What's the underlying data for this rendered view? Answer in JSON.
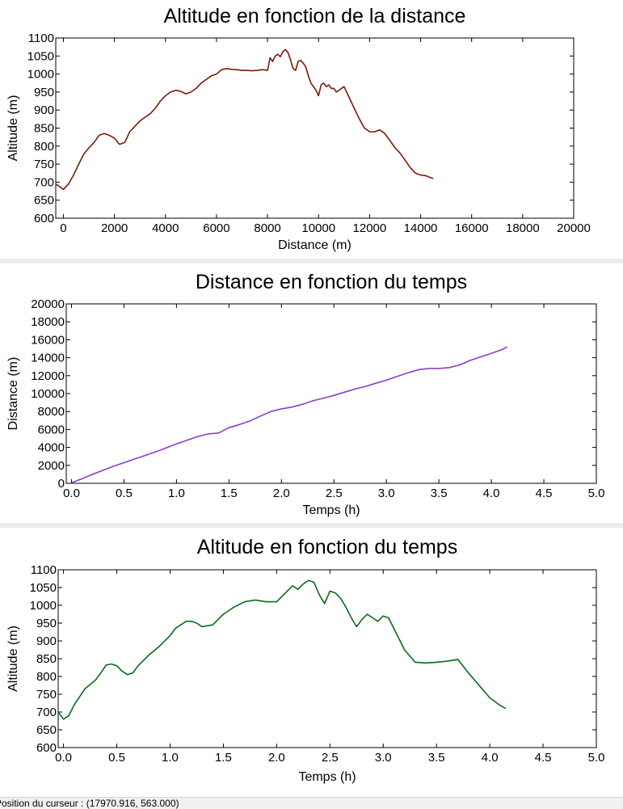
{
  "charts": [
    {
      "type": "line",
      "title": "Altitude en fonction de la distance",
      "xlabel": "Distance (m)",
      "ylabel": "Altitude (m)",
      "xlim": [
        -300,
        20000
      ],
      "ylim": [
        600,
        1100
      ],
      "xticks": [
        0,
        2000,
        4000,
        6000,
        8000,
        10000,
        12000,
        14000,
        16000,
        18000,
        20000
      ],
      "xtick_labels": [
        "0",
        "2000",
        "4000",
        "6000",
        "8000",
        "10000",
        "12000",
        "14000",
        "16000",
        "18000",
        "20000"
      ],
      "yticks": [
        600,
        650,
        700,
        750,
        800,
        850,
        900,
        950,
        1000,
        1050,
        1100
      ],
      "ytick_labels": [
        "600",
        "650",
        "700",
        "750",
        "800",
        "850",
        "900",
        "950",
        "1000",
        "1050",
        "1100"
      ],
      "series": [
        {
          "color": "#7a1a0a",
          "x": [
            -300,
            0,
            200,
            400,
            600,
            800,
            1000,
            1200,
            1400,
            1600,
            1800,
            2000,
            2200,
            2400,
            2600,
            2800,
            3000,
            3200,
            3400,
            3600,
            3800,
            4000,
            4200,
            4400,
            4600,
            4800,
            5000,
            5200,
            5400,
            5600,
            5800,
            6000,
            6200,
            6400,
            6600,
            6800,
            7000,
            7200,
            7400,
            7600,
            7800,
            8000,
            8100,
            8200,
            8300,
            8400,
            8500,
            8600,
            8700,
            8800,
            8900,
            9000,
            9100,
            9200,
            9300,
            9400,
            9500,
            9600,
            9700,
            9800,
            9900,
            10000,
            10100,
            10200,
            10300,
            10400,
            10500,
            10600,
            10700,
            10800,
            11000,
            11200,
            11400,
            11600,
            11800,
            12000,
            12200,
            12400,
            12600,
            12800,
            13000,
            13200,
            13400,
            13600,
            13800,
            14000,
            14200,
            14400,
            14500
          ],
          "y": [
            695,
            680,
            695,
            720,
            750,
            778,
            795,
            810,
            830,
            835,
            830,
            822,
            805,
            810,
            840,
            855,
            870,
            880,
            890,
            905,
            925,
            940,
            950,
            955,
            952,
            945,
            950,
            960,
            975,
            985,
            995,
            1000,
            1012,
            1015,
            1013,
            1012,
            1010,
            1010,
            1009,
            1010,
            1012,
            1010,
            1045,
            1035,
            1050,
            1055,
            1048,
            1062,
            1068,
            1060,
            1040,
            1015,
            1010,
            1035,
            1038,
            1030,
            1020,
            995,
            975,
            965,
            955,
            940,
            970,
            975,
            965,
            970,
            960,
            960,
            950,
            955,
            965,
            935,
            905,
            875,
            850,
            840,
            840,
            845,
            835,
            815,
            795,
            780,
            760,
            740,
            725,
            720,
            718,
            712,
            710
          ]
        }
      ]
    },
    {
      "type": "line",
      "title": "Distance en fonction du temps",
      "xlabel": "Temps (h)",
      "ylabel": "Distance (m)",
      "xlim": [
        -0.05,
        5
      ],
      "ylim": [
        0,
        20000
      ],
      "xticks": [
        0,
        0.5,
        1,
        1.5,
        2,
        2.5,
        3,
        3.5,
        4,
        4.5,
        5
      ],
      "xtick_labels": [
        "0.0",
        "0.5",
        "1.0",
        "1.5",
        "2.0",
        "2.5",
        "3.0",
        "3.5",
        "4.0",
        "4.5",
        "5.0"
      ],
      "yticks": [
        0,
        2000,
        4000,
        6000,
        8000,
        10000,
        12000,
        14000,
        16000,
        18000,
        20000
      ],
      "ytick_labels": [
        "0",
        "2000",
        "4000",
        "6000",
        "8000",
        "10000",
        "12000",
        "14000",
        "16000",
        "18000",
        "20000"
      ],
      "series": [
        {
          "color": "#8a3ec8",
          "x": [
            0,
            0.1,
            0.2,
            0.3,
            0.4,
            0.5,
            0.6,
            0.7,
            0.8,
            0.9,
            1.0,
            1.1,
            1.2,
            1.3,
            1.4,
            1.5,
            1.6,
            1.7,
            1.8,
            1.9,
            2.0,
            2.1,
            2.2,
            2.3,
            2.4,
            2.5,
            2.6,
            2.7,
            2.8,
            2.9,
            3.0,
            3.1,
            3.2,
            3.3,
            3.4,
            3.5,
            3.6,
            3.7,
            3.8,
            3.9,
            4.0,
            4.1,
            4.15
          ],
          "y": [
            50,
            500,
            1000,
            1450,
            1900,
            2300,
            2700,
            3100,
            3500,
            3950,
            4400,
            4800,
            5200,
            5500,
            5600,
            6200,
            6550,
            6950,
            7500,
            8000,
            8300,
            8500,
            8800,
            9200,
            9500,
            9800,
            10150,
            10500,
            10800,
            11150,
            11500,
            11900,
            12300,
            12650,
            12800,
            12800,
            12900,
            13200,
            13700,
            14100,
            14500,
            14900,
            15200
          ]
        }
      ]
    },
    {
      "type": "line",
      "title": "Altitude en fonction du temps",
      "xlabel": "Temps (h)",
      "ylabel": "Altitude (m)",
      "xlim": [
        -0.05,
        5
      ],
      "ylim": [
        600,
        1100
      ],
      "xticks": [
        0,
        0.5,
        1,
        1.5,
        2,
        2.5,
        3,
        3.5,
        4,
        4.5,
        5
      ],
      "xtick_labels": [
        "0.0",
        "0.5",
        "1.0",
        "1.5",
        "2.0",
        "2.5",
        "3.0",
        "3.5",
        "4.0",
        "4.5",
        "5.0"
      ],
      "yticks": [
        600,
        650,
        700,
        750,
        800,
        850,
        900,
        950,
        1000,
        1050,
        1100
      ],
      "ytick_labels": [
        "600",
        "650",
        "700",
        "750",
        "800",
        "850",
        "900",
        "950",
        "1000",
        "1050",
        "1100"
      ],
      "series": [
        {
          "color": "#0a6a1a",
          "x": [
            -0.05,
            0.0,
            0.05,
            0.1,
            0.2,
            0.3,
            0.35,
            0.4,
            0.45,
            0.5,
            0.55,
            0.6,
            0.65,
            0.7,
            0.75,
            0.8,
            0.9,
            1.0,
            1.05,
            1.1,
            1.15,
            1.2,
            1.25,
            1.3,
            1.4,
            1.5,
            1.6,
            1.7,
            1.8,
            1.9,
            2.0,
            2.1,
            2.15,
            2.2,
            2.25,
            2.3,
            2.35,
            2.4,
            2.45,
            2.5,
            2.55,
            2.6,
            2.65,
            2.7,
            2.75,
            2.8,
            2.85,
            2.9,
            2.95,
            3.0,
            3.05,
            3.1,
            3.2,
            3.3,
            3.4,
            3.5,
            3.6,
            3.7,
            3.8,
            3.9,
            4.0,
            4.1,
            4.15
          ],
          "y": [
            700,
            680,
            690,
            720,
            765,
            790,
            810,
            832,
            835,
            830,
            815,
            805,
            810,
            830,
            845,
            860,
            885,
            915,
            935,
            945,
            955,
            955,
            950,
            940,
            945,
            975,
            995,
            1010,
            1015,
            1010,
            1010,
            1040,
            1055,
            1045,
            1060,
            1070,
            1065,
            1030,
            1005,
            1040,
            1035,
            1020,
            995,
            965,
            940,
            960,
            975,
            965,
            955,
            970,
            965,
            935,
            875,
            840,
            838,
            840,
            843,
            848,
            810,
            775,
            740,
            718,
            710
          ]
        }
      ]
    }
  ],
  "status_bar": {
    "text": "Position du curseur : (17970.916, 563.000)"
  }
}
